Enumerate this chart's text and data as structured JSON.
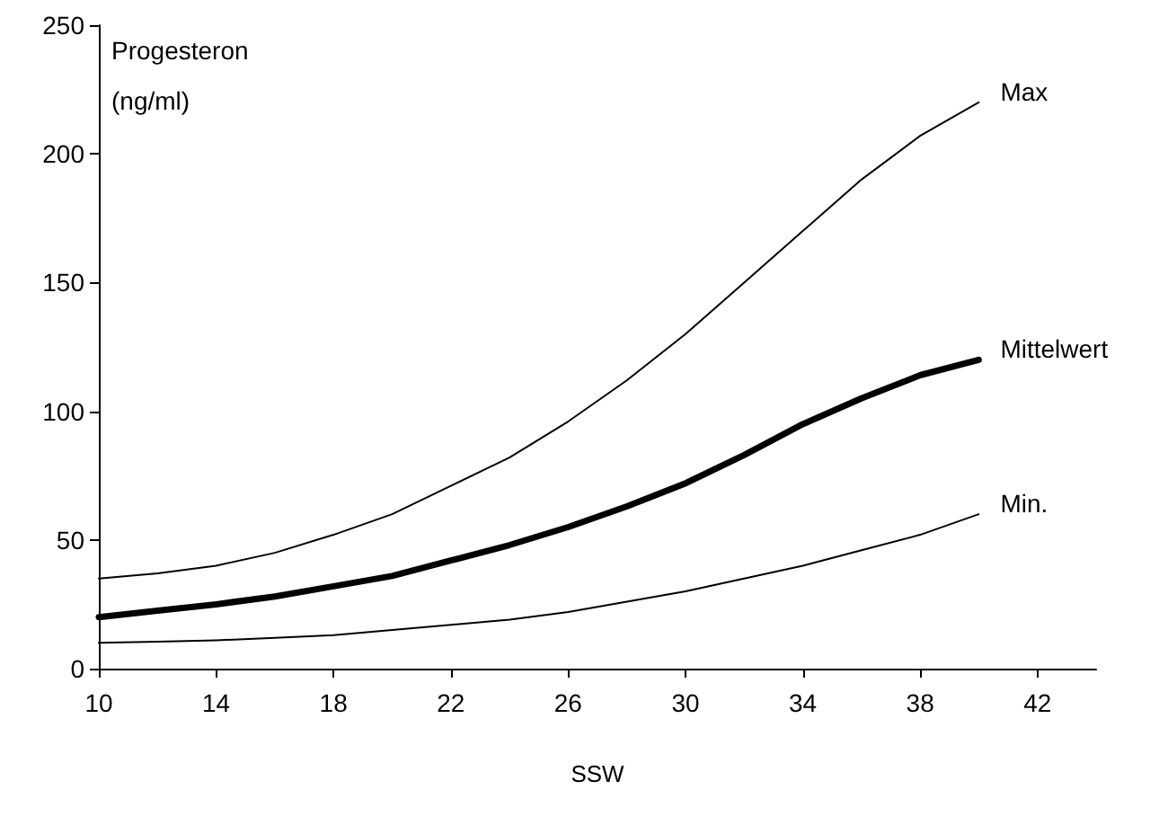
{
  "chart_data": {
    "type": "line",
    "ylabel": "Progesteron\n(ng/ml)",
    "xlabel": "SSW",
    "x": [
      10,
      12,
      14,
      16,
      18,
      20,
      22,
      24,
      26,
      28,
      30,
      32,
      34,
      36,
      38,
      40
    ],
    "series": [
      {
        "name": "Max",
        "color": "#000000",
        "values": [
          35,
          37,
          40,
          45,
          52,
          60,
          71,
          82,
          96,
          112,
          130,
          150,
          170,
          190,
          207,
          220
        ]
      },
      {
        "name": "Mittelwert",
        "color": "#000000",
        "values": [
          20,
          22.5,
          25,
          28,
          32,
          36,
          42,
          48,
          55,
          63,
          72,
          83,
          95,
          105,
          114,
          120
        ]
      },
      {
        "name": "Min.",
        "color": "#000000",
        "values": [
          10,
          10.5,
          11,
          12,
          13,
          15,
          17,
          19,
          22,
          26,
          30,
          35,
          40,
          46,
          52,
          60
        ]
      }
    ],
    "xlim": [
      10,
      44
    ],
    "xticks": [
      10,
      14,
      18,
      22,
      26,
      30,
      34,
      38,
      42
    ],
    "ylim": [
      0,
      250
    ],
    "yticks": [
      0,
      50,
      100,
      150,
      200,
      250
    ],
    "grid": false,
    "legend": false,
    "marker": "none",
    "line_style": "solid"
  }
}
